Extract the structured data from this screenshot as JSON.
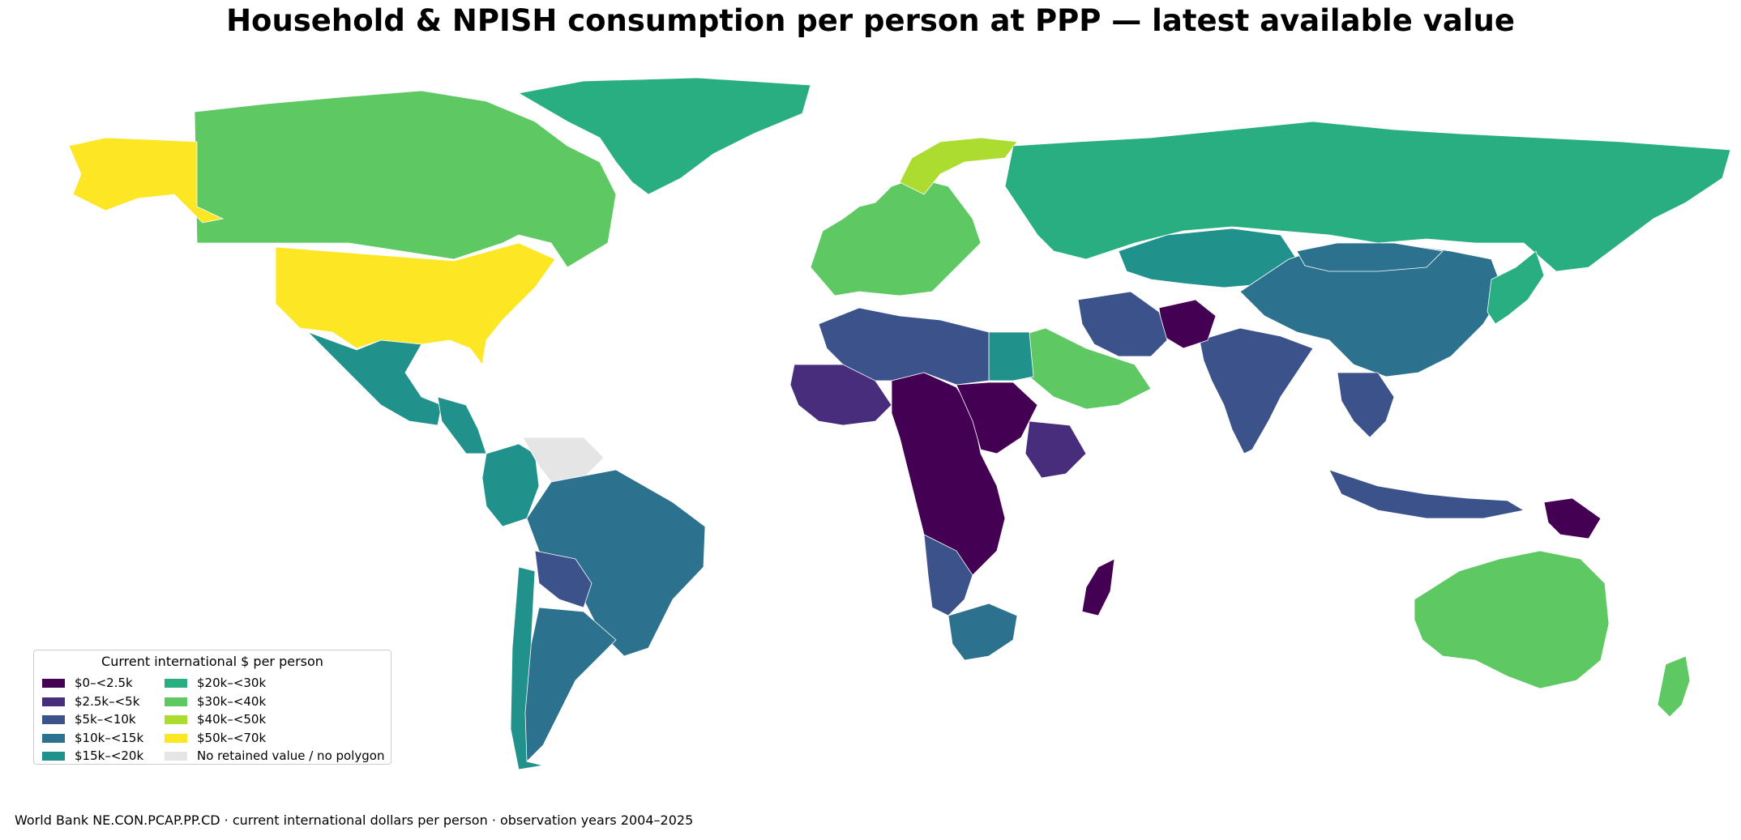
{
  "title": "Household & NPISH consumption per person at PPP — latest available value",
  "footer": "World Bank NE.CON.PCAP.PP.CD · current international dollars per person · observation years 2004–2025",
  "legend": {
    "title": "Current international $ per person",
    "items": [
      {
        "label": "$0–<2.5k",
        "color": "#440154"
      },
      {
        "label": "$2.5k–<5k",
        "color": "#472d7b"
      },
      {
        "label": "$5k–<10k",
        "color": "#3b528b"
      },
      {
        "label": "$10k–<15k",
        "color": "#2c728e"
      },
      {
        "label": "$15k–<20k",
        "color": "#21918c"
      },
      {
        "label": "$20k–<30k",
        "color": "#28ae80"
      },
      {
        "label": "$30k–<40k",
        "color": "#5ec962"
      },
      {
        "label": "$40k–<50k",
        "color": "#addc30"
      },
      {
        "label": "$50k–<70k",
        "color": "#fde725"
      },
      {
        "label": "No retained value / no polygon",
        "color": "#e5e5e5"
      }
    ]
  },
  "map_data": {
    "type": "choropleth",
    "regions": [
      {
        "region": "Canada",
        "bin": 6
      },
      {
        "region": "Alaska (USA)",
        "bin": 8
      },
      {
        "region": "United States",
        "bin": 8
      },
      {
        "region": "Greenland",
        "bin": 5
      },
      {
        "region": "Mexico",
        "bin": 4
      },
      {
        "region": "Central America",
        "bin": 4
      },
      {
        "region": "Colombia",
        "bin": 4
      },
      {
        "region": "Venezuela",
        "bin": 9
      },
      {
        "region": "Brazil",
        "bin": 3
      },
      {
        "region": "Bolivia",
        "bin": 2
      },
      {
        "region": "Argentina",
        "bin": 3
      },
      {
        "region": "Chile",
        "bin": 4
      },
      {
        "region": "Western Europe",
        "bin": 6
      },
      {
        "region": "Norway",
        "bin": 7
      },
      {
        "region": "Russia",
        "bin": 5
      },
      {
        "region": "Kazakhstan",
        "bin": 4
      },
      {
        "region": "China",
        "bin": 3
      },
      {
        "region": "Mongolia",
        "bin": 3
      },
      {
        "region": "Japan",
        "bin": 5
      },
      {
        "region": "India",
        "bin": 2
      },
      {
        "region": "Afghanistan",
        "bin": 0
      },
      {
        "region": "Iran",
        "bin": 2
      },
      {
        "region": "Saudi Arabia",
        "bin": 6
      },
      {
        "region": "Egypt",
        "bin": 4
      },
      {
        "region": "Libya / North Africa",
        "bin": 2
      },
      {
        "region": "West Sahel",
        "bin": 1
      },
      {
        "region": "Central Africa",
        "bin": 0
      },
      {
        "region": "Sudan",
        "bin": 0
      },
      {
        "region": "Ethiopia",
        "bin": 1
      },
      {
        "region": "Angola / Namibia",
        "bin": 2
      },
      {
        "region": "South Africa",
        "bin": 3
      },
      {
        "region": "Madagascar",
        "bin": 0
      },
      {
        "region": "Southeast Asia",
        "bin": 2
      },
      {
        "region": "Indonesia",
        "bin": 2
      },
      {
        "region": "Papua New Guinea",
        "bin": 0
      },
      {
        "region": "Australia",
        "bin": 6
      },
      {
        "region": "New Zealand",
        "bin": 6
      }
    ]
  }
}
